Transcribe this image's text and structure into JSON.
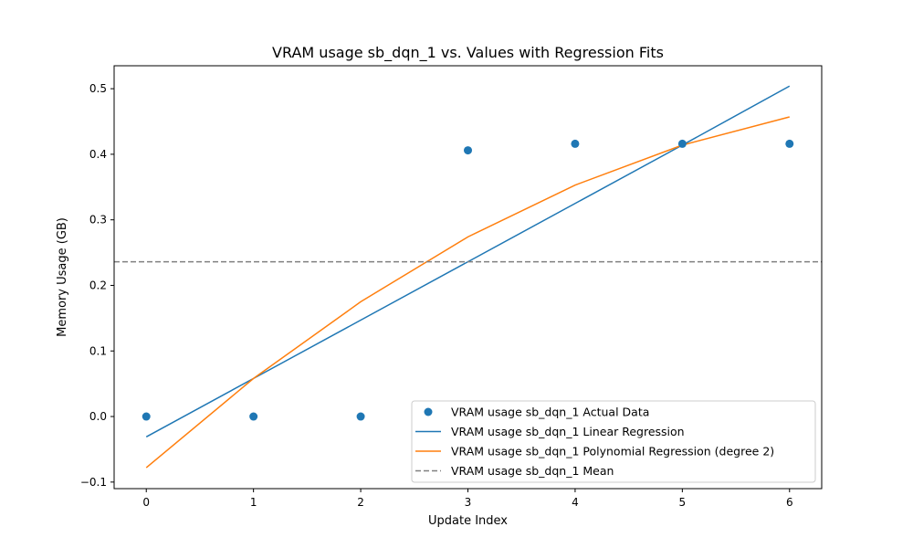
{
  "chart_data": {
    "type": "scatter",
    "title": "VRAM usage sb_dqn_1 vs. Values with Regression Fits",
    "xlabel": "Update Index",
    "ylabel": "Memory Usage (GB)",
    "xlim": [
      -0.3,
      6.3
    ],
    "ylim": [
      -0.11,
      0.535
    ],
    "xticks": [
      0,
      1,
      2,
      3,
      4,
      5,
      6
    ],
    "xtick_labels": [
      "0",
      "1",
      "2",
      "3",
      "4",
      "5",
      "6"
    ],
    "yticks": [
      -0.1,
      0.0,
      0.1,
      0.2,
      0.3,
      0.4,
      0.5
    ],
    "ytick_labels": [
      "−0.1",
      "0.0",
      "0.1",
      "0.2",
      "0.3",
      "0.4",
      "0.5"
    ],
    "grid": false,
    "legend_position": "bottom-right",
    "series": [
      {
        "name": "VRAM usage sb_dqn_1 Actual Data",
        "kind": "scatter",
        "color": "#1f77b4",
        "x": [
          0,
          1,
          2,
          3,
          4,
          5,
          6
        ],
        "y": [
          0.0,
          0.0,
          0.0,
          0.406,
          0.416,
          0.416,
          0.416
        ]
      },
      {
        "name": "VRAM usage sb_dqn_1 Linear Regression",
        "kind": "line",
        "color": "#1f77b4",
        "x": [
          0,
          1,
          2,
          3,
          4,
          5,
          6
        ],
        "y": [
          -0.031,
          0.058,
          0.147,
          0.236,
          0.325,
          0.414,
          0.504
        ]
      },
      {
        "name": "VRAM usage sb_dqn_1 Polynomial Regression (degree 2)",
        "kind": "line",
        "color": "#ff7f0e",
        "x": [
          0,
          1,
          2,
          3,
          4,
          5,
          6
        ],
        "y": [
          -0.078,
          0.058,
          0.175,
          0.274,
          0.353,
          0.414,
          0.457
        ]
      },
      {
        "name": "VRAM usage sb_dqn_1 Mean",
        "kind": "hline",
        "color": "#808080",
        "y": 0.236
      }
    ]
  }
}
